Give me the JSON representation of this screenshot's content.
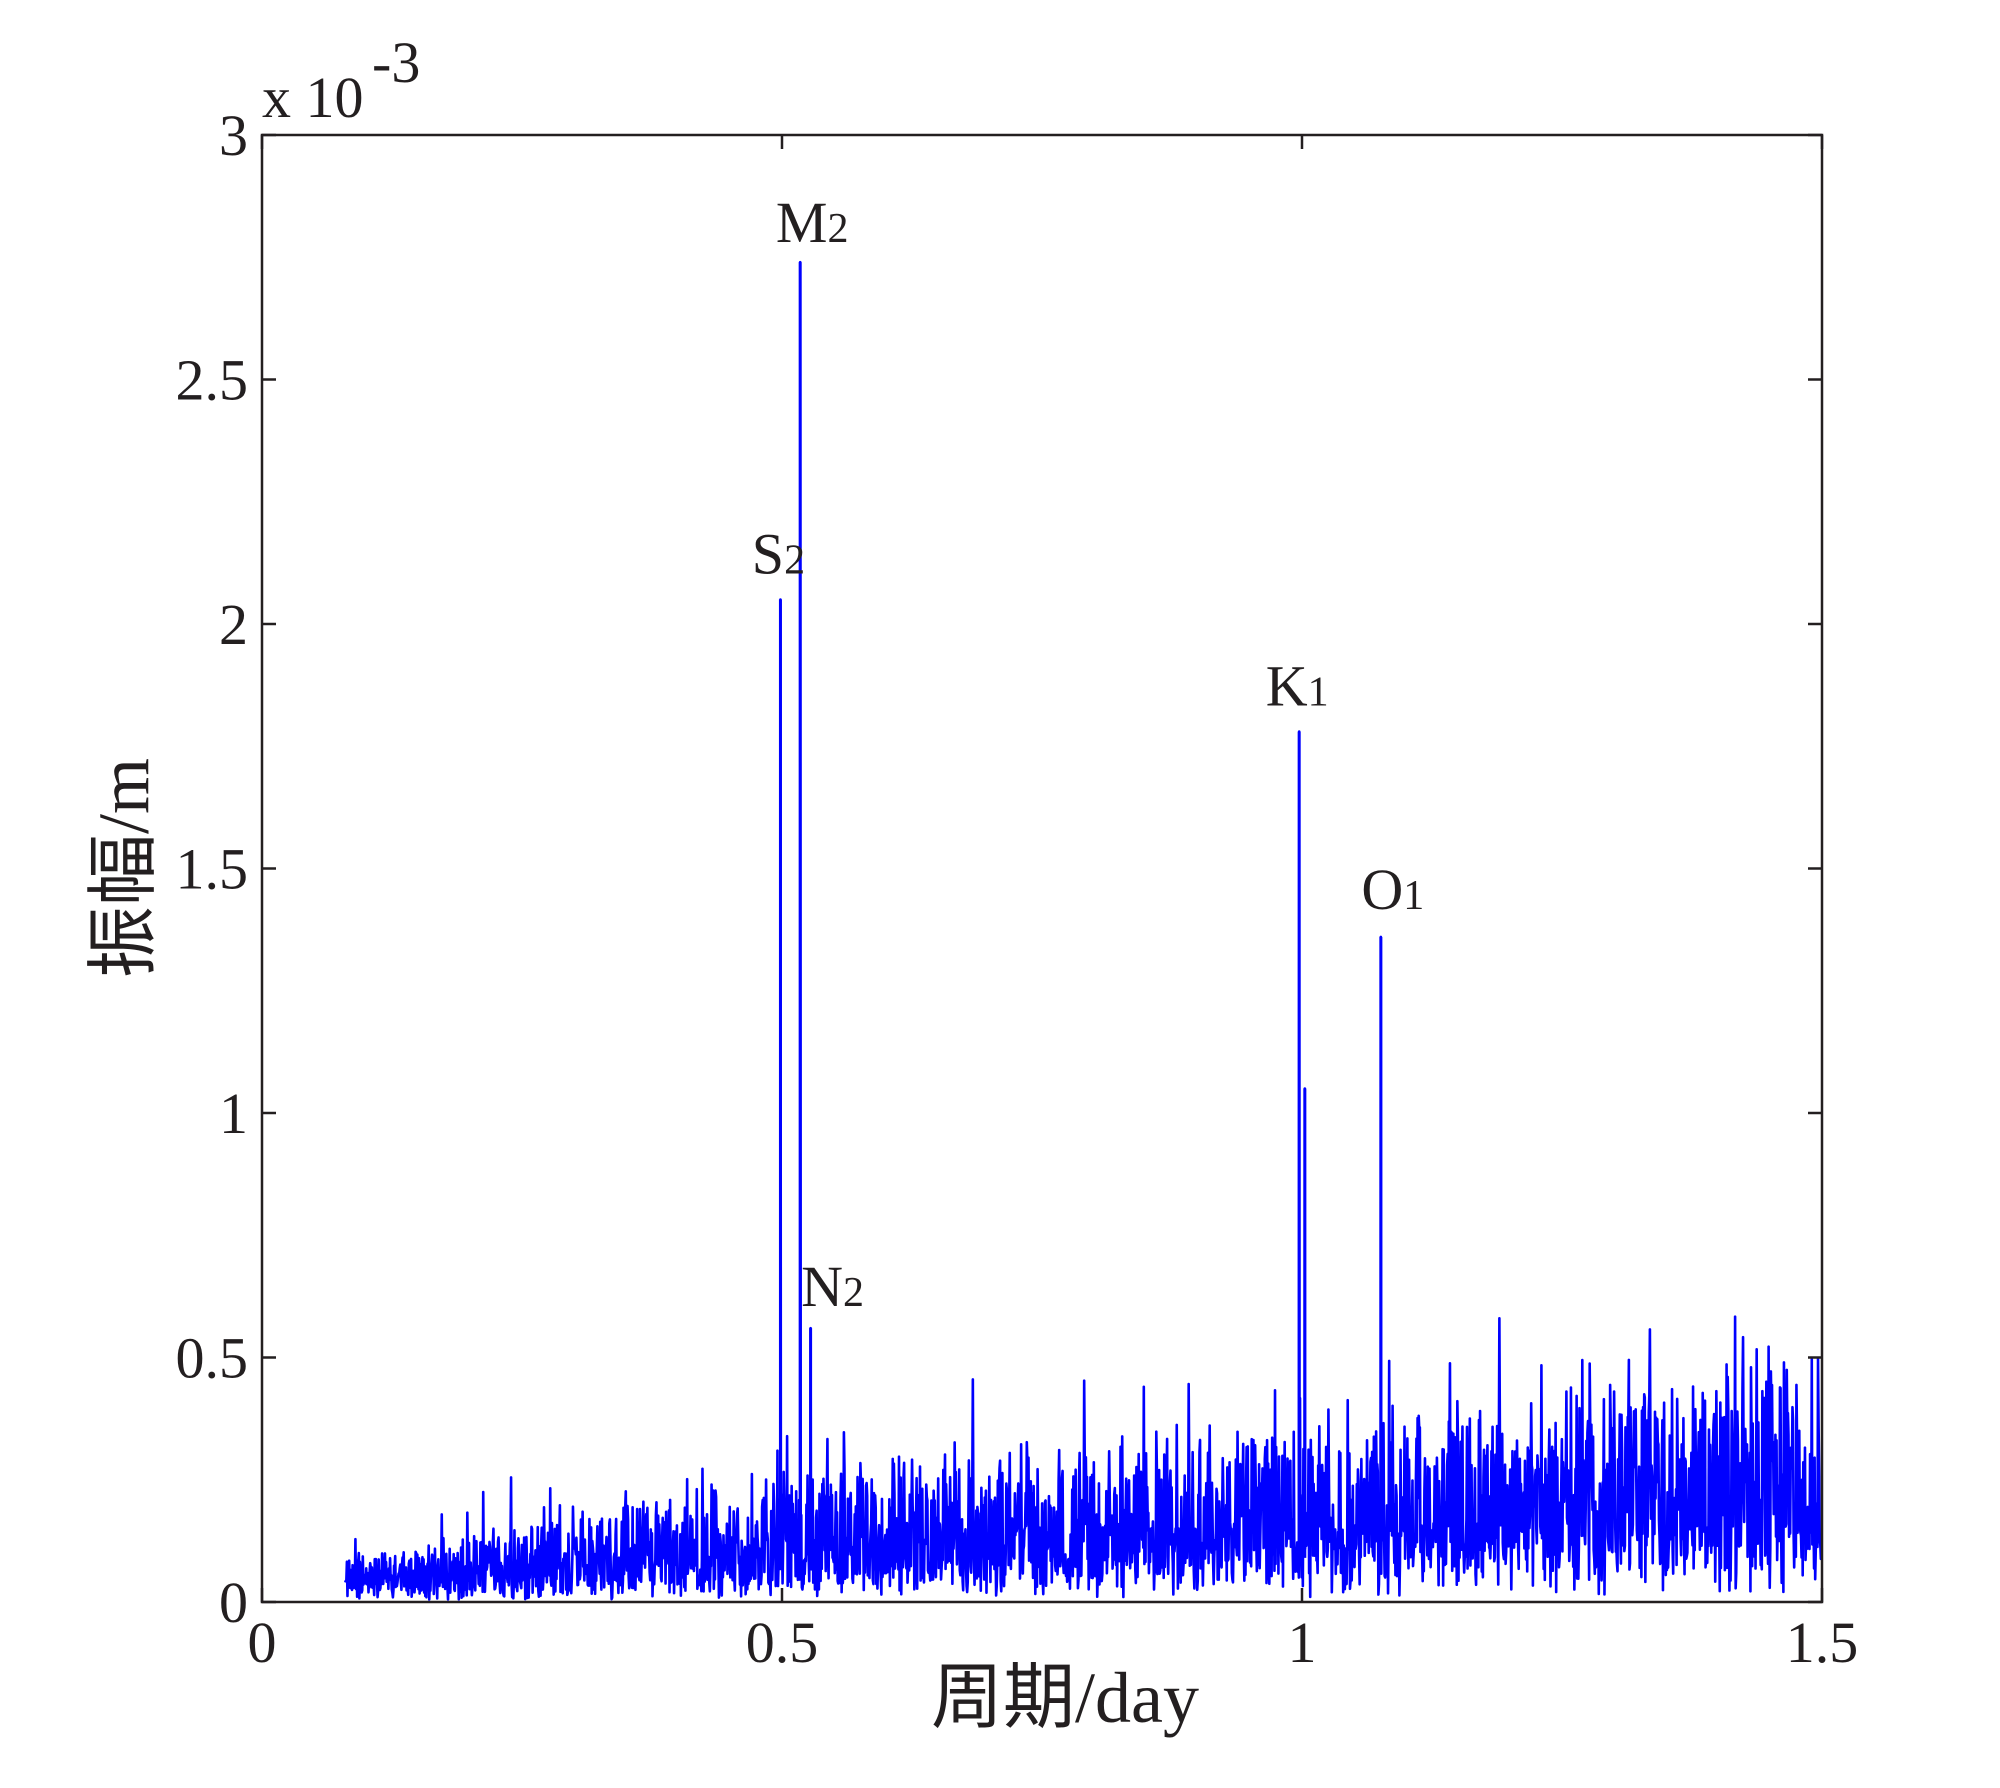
{
  "chart_data": {
    "type": "line",
    "xlabel": "周期/day",
    "ylabel": "振幅/m",
    "xlim": [
      0,
      1.5
    ],
    "ylim": [
      0,
      3
    ],
    "y_scale_label": {
      "base": "x 10",
      "exponent": "-3"
    },
    "x_ticks": [
      "0",
      "0.5",
      "1",
      "1.5"
    ],
    "y_ticks": [
      "0",
      "0.5",
      "1",
      "1.5",
      "2",
      "2.5",
      "3"
    ],
    "grid": false,
    "legend": "none",
    "line_color": "#0000ff",
    "series": [
      {
        "values_unit": "x 10^-3 m",
        "noise_floor": [
          [
            0.08,
            0.05
          ],
          [
            0.3,
            0.09
          ],
          [
            0.5,
            0.13
          ],
          [
            0.75,
            0.16
          ],
          [
            1.0,
            0.18
          ],
          [
            1.25,
            0.22
          ],
          [
            1.5,
            0.26
          ]
        ],
        "peaks": [
          {
            "label": "S",
            "sub": "2",
            "x": 0.4985,
            "y": 2.05
          },
          {
            "label": "M",
            "sub": "2",
            "x": 0.5175,
            "y": 2.74
          },
          {
            "label": "N",
            "sub": "2",
            "x": 0.5275,
            "y": 0.56
          },
          {
            "label": "K",
            "sub": "1",
            "x": 0.9973,
            "y": 1.78
          },
          {
            "label": "",
            "sub": "",
            "x": 1.0027,
            "y": 1.05
          },
          {
            "label": "O",
            "sub": "1",
            "x": 1.0758,
            "y": 1.36
          }
        ]
      }
    ]
  }
}
